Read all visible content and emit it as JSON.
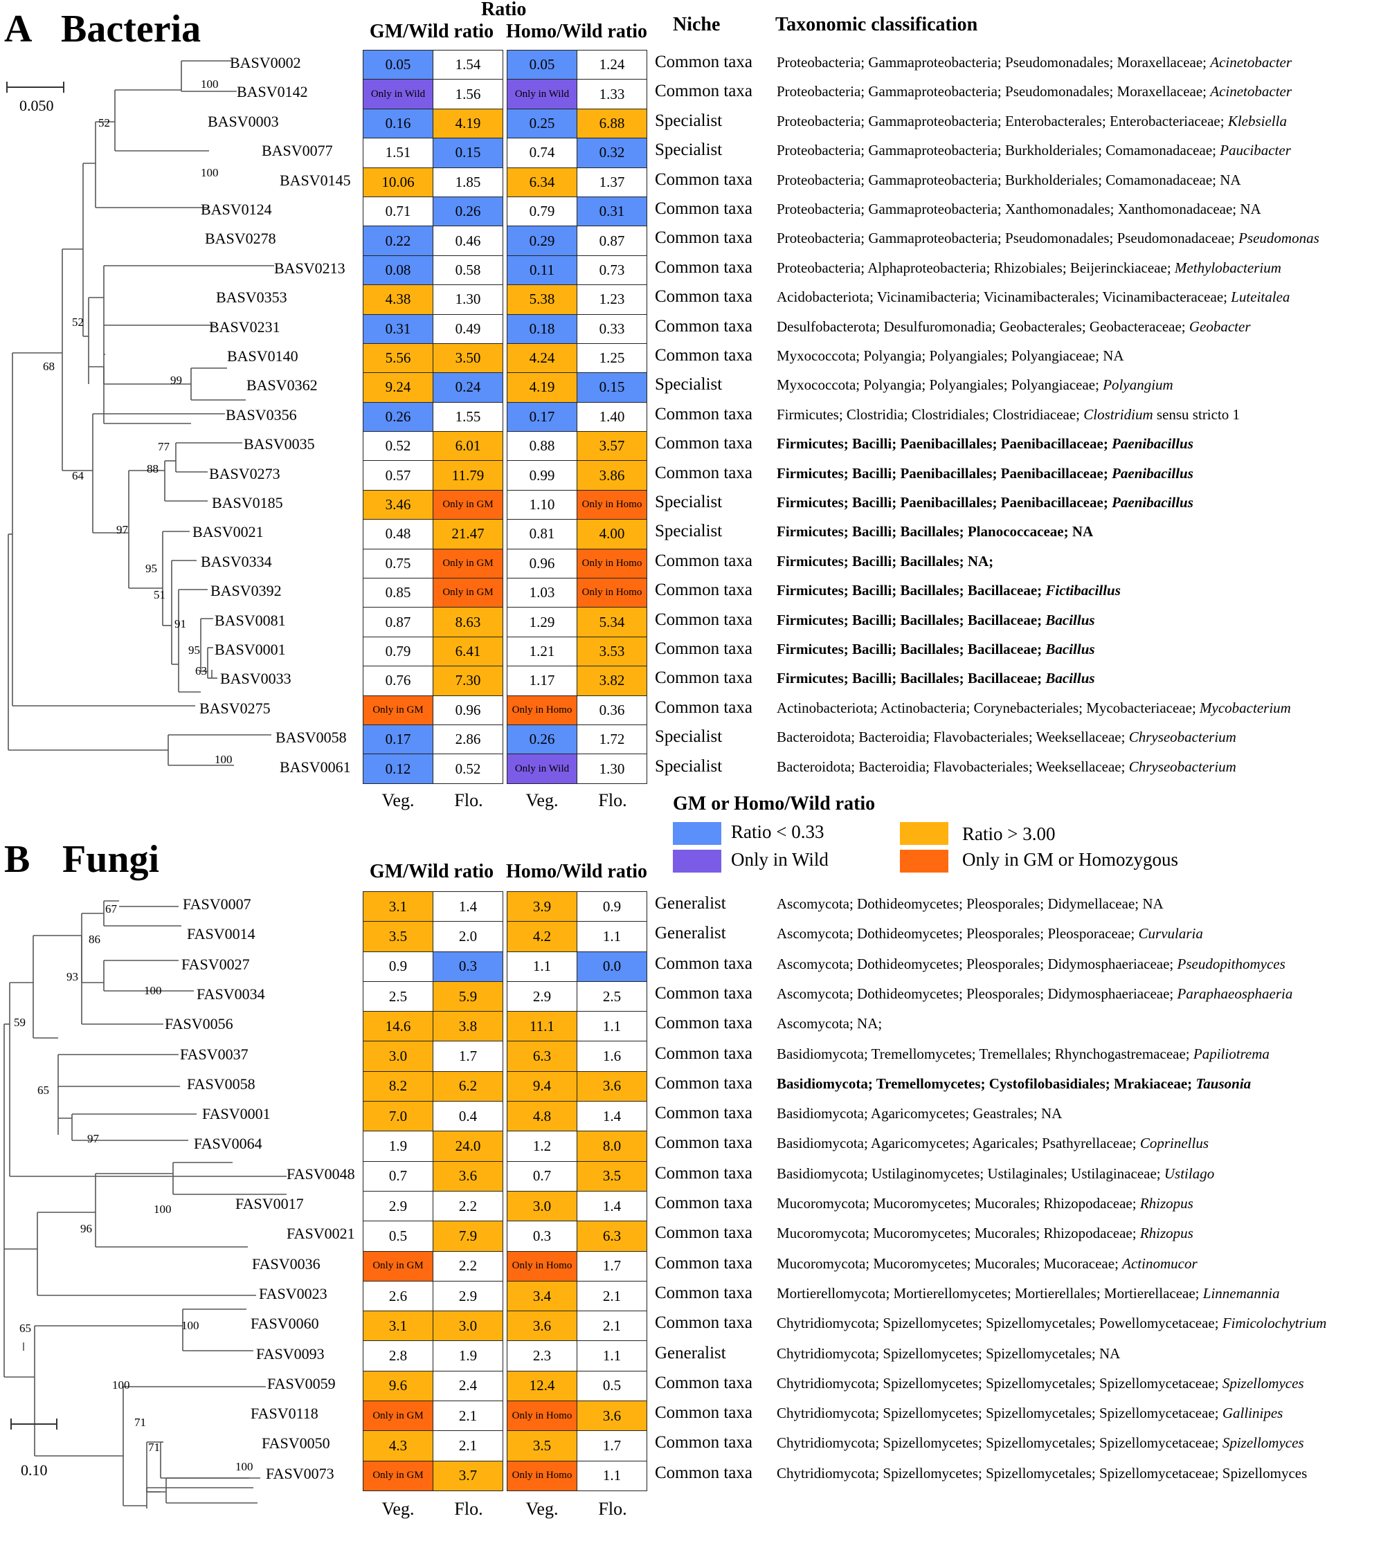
{
  "colors": {
    "low": "#5b8ff9",
    "wild": "#7b5ce6",
    "high": "#ffb20f",
    "only": "#ff6a10",
    "none": "#ffffff"
  },
  "panel_a": {
    "letter": "A",
    "title": "Bacteria",
    "header_ratio": "Ratio",
    "header_gm": "GM/Wild ratio",
    "header_homo": "Homo/Wild ratio",
    "header_niche": "Niche",
    "header_tax": "Taxonomic classification",
    "scale": "0.050",
    "rows": [
      {
        "id": "BASV0002",
        "gv": "0.05",
        "gvc": "low",
        "gf": "1.54",
        "gfc": "none",
        "hv": "0.05",
        "hvc": "low",
        "hf": "1.24",
        "hfc": "none",
        "niche": "Common taxa",
        "tax": "Proteobacteria; Gammaproteobacteria; Pseudomonadales; Moraxellaceae; ",
        "genus": "Acinetobacter",
        "bold": false
      },
      {
        "id": "BASV0142",
        "gv": "Only in Wild",
        "gvc": "wild",
        "gf": "1.56",
        "gfc": "none",
        "hv": "Only in Wild",
        "hvc": "wild",
        "hf": "1.33",
        "hfc": "none",
        "niche": "Common taxa",
        "tax": "Proteobacteria; Gammaproteobacteria; Pseudomonadales; Moraxellaceae; ",
        "genus": "Acinetobacter",
        "bold": false
      },
      {
        "id": "BASV0003",
        "gv": "0.16",
        "gvc": "low",
        "gf": "4.19",
        "gfc": "high",
        "hv": "0.25",
        "hvc": "low",
        "hf": "6.88",
        "hfc": "high",
        "niche": "Specialist",
        "tax": "Proteobacteria; Gammaproteobacteria; Enterobacterales; Enterobacteriaceae; ",
        "genus": "Klebsiella",
        "bold": false
      },
      {
        "id": "BASV0077",
        "gv": "1.51",
        "gvc": "none",
        "gf": "0.15",
        "gfc": "low",
        "hv": "0.74",
        "hvc": "none",
        "hf": "0.32",
        "hfc": "low",
        "niche": "Specialist",
        "tax": "Proteobacteria; Gammaproteobacteria; Burkholderiales; Comamonadaceae; ",
        "genus": "Paucibacter",
        "bold": false
      },
      {
        "id": "BASV0145",
        "gv": "10.06",
        "gvc": "high",
        "gf": "1.85",
        "gfc": "none",
        "hv": "6.34",
        "hvc": "high",
        "hf": "1.37",
        "hfc": "none",
        "niche": "Common taxa",
        "tax": "Proteobacteria; Gammaproteobacteria; Burkholderiales; Comamonadaceae; NA",
        "genus": "",
        "bold": false
      },
      {
        "id": "BASV0124",
        "gv": "0.71",
        "gvc": "none",
        "gf": "0.26",
        "gfc": "low",
        "hv": "0.79",
        "hvc": "none",
        "hf": "0.31",
        "hfc": "low",
        "niche": "Common taxa",
        "tax": "Proteobacteria; Gammaproteobacteria; Xanthomonadales; Xanthomonadaceae; NA",
        "genus": "",
        "bold": false
      },
      {
        "id": "BASV0278",
        "gv": "0.22",
        "gvc": "low",
        "gf": "0.46",
        "gfc": "none",
        "hv": "0.29",
        "hvc": "low",
        "hf": "0.87",
        "hfc": "none",
        "niche": "Common taxa",
        "tax": "Proteobacteria; Gammaproteobacteria; Pseudomonadales; Pseudomonadaceae; ",
        "genus": "Pseudomonas",
        "bold": false
      },
      {
        "id": "BASV0213",
        "gv": "0.08",
        "gvc": "low",
        "gf": "0.58",
        "gfc": "none",
        "hv": "0.11",
        "hvc": "low",
        "hf": "0.73",
        "hfc": "none",
        "niche": "Common taxa",
        "tax": "Proteobacteria; Alphaproteobacteria; Rhizobiales; Beijerinckiaceae; ",
        "genus": "Methylobacterium",
        "bold": false
      },
      {
        "id": "BASV0353",
        "gv": "4.38",
        "gvc": "high",
        "gf": "1.30",
        "gfc": "none",
        "hv": "5.38",
        "hvc": "high",
        "hf": "1.23",
        "hfc": "none",
        "niche": "Common taxa",
        "tax": "Acidobacteriota; Vicinamibacteria; Vicinamibacterales; Vicinamibacteraceae; ",
        "genus": "Luteitalea",
        "bold": false
      },
      {
        "id": "BASV0231",
        "gv": "0.31",
        "gvc": "low",
        "gf": "0.49",
        "gfc": "none",
        "hv": "0.18",
        "hvc": "low",
        "hf": "0.33",
        "hfc": "none",
        "niche": "Common taxa",
        "tax": "Desulfobacterota; Desulfuromonadia; Geobacterales; Geobacteraceae; ",
        "genus": "Geobacter",
        "bold": false
      },
      {
        "id": "BASV0140",
        "gv": "5.56",
        "gvc": "high",
        "gf": "3.50",
        "gfc": "high",
        "hv": "4.24",
        "hvc": "high",
        "hf": "1.25",
        "hfc": "none",
        "niche": "Common taxa",
        "tax": "Myxococcota; Polyangia; Polyangiales; Polyangiaceae; NA",
        "genus": "",
        "bold": false
      },
      {
        "id": "BASV0362",
        "gv": "9.24",
        "gvc": "high",
        "gf": "0.24",
        "gfc": "low",
        "hv": "4.19",
        "hvc": "high",
        "hf": "0.15",
        "hfc": "low",
        "niche": "Specialist",
        "tax": "Myxococcota; Polyangia; Polyangiales; Polyangiaceae; ",
        "genus": "Polyangium",
        "bold": false
      },
      {
        "id": "BASV0356",
        "gv": "0.26",
        "gvc": "low",
        "gf": "1.55",
        "gfc": "none",
        "hv": "0.17",
        "hvc": "low",
        "hf": "1.40",
        "hfc": "none",
        "niche": "Common taxa",
        "tax": "Firmicutes; Clostridia; Clostridiales; Clostridiaceae; ",
        "genus": "Clostridium",
        "suffix": " sensu stricto 1",
        "bold": false
      },
      {
        "id": "BASV0035",
        "gv": "0.52",
        "gvc": "none",
        "gf": "6.01",
        "gfc": "high",
        "hv": "0.88",
        "hvc": "none",
        "hf": "3.57",
        "hfc": "high",
        "niche": "Common taxa",
        "tax": "Firmicutes; Bacilli; Paenibacillales; Paenibacillaceae; ",
        "genus": "Paenibacillus",
        "bold": true
      },
      {
        "id": "BASV0273",
        "gv": "0.57",
        "gvc": "none",
        "gf": "11.79",
        "gfc": "high",
        "hv": "0.99",
        "hvc": "none",
        "hf": "3.86",
        "hfc": "high",
        "niche": "Common taxa",
        "tax": "Firmicutes; Bacilli; Paenibacillales; Paenibacillaceae; ",
        "genus": "Paenibacillus",
        "bold": true
      },
      {
        "id": "BASV0185",
        "gv": "3.46",
        "gvc": "high",
        "gf": "Only in GM",
        "gfc": "only",
        "hv": "1.10",
        "hvc": "none",
        "hf": "Only in Homo",
        "hfc": "only",
        "niche": "Specialist",
        "tax": "Firmicutes; Bacilli; Paenibacillales; Paenibacillaceae; ",
        "genus": "Paenibacillus",
        "bold": true
      },
      {
        "id": "BASV0021",
        "gv": "0.48",
        "gvc": "none",
        "gf": "21.47",
        "gfc": "high",
        "hv": "0.81",
        "hvc": "none",
        "hf": "4.00",
        "hfc": "high",
        "niche": "Specialist",
        "tax": "Firmicutes; Bacilli; Bacillales; Planococcaceae; NA",
        "genus": "",
        "bold": true
      },
      {
        "id": "BASV0334",
        "gv": "0.75",
        "gvc": "none",
        "gf": "Only in GM",
        "gfc": "only",
        "hv": "0.96",
        "hvc": "none",
        "hf": "Only in Homo",
        "hfc": "only",
        "niche": "Common taxa",
        "tax": "Firmicutes; Bacilli; Bacillales; NA;",
        "genus": "",
        "bold": true
      },
      {
        "id": "BASV0392",
        "gv": "0.85",
        "gvc": "none",
        "gf": "Only in GM",
        "gfc": "only",
        "hv": "1.03",
        "hvc": "none",
        "hf": "Only in Homo",
        "hfc": "only",
        "niche": "Common taxa",
        "tax": "Firmicutes; Bacilli; Bacillales; Bacillaceae; ",
        "genus": "Fictibacillus",
        "bold": true
      },
      {
        "id": "BASV0081",
        "gv": "0.87",
        "gvc": "none",
        "gf": "8.63",
        "gfc": "high",
        "hv": "1.29",
        "hvc": "none",
        "hf": "5.34",
        "hfc": "high",
        "niche": "Common taxa",
        "tax": "Firmicutes; Bacilli; Bacillales; Bacillaceae; ",
        "genus": "Bacillus",
        "bold": true
      },
      {
        "id": "BASV0001",
        "gv": "0.79",
        "gvc": "none",
        "gf": "6.41",
        "gfc": "high",
        "hv": "1.21",
        "hvc": "none",
        "hf": "3.53",
        "hfc": "high",
        "niche": "Common taxa",
        "tax": "Firmicutes; Bacilli; Bacillales; Bacillaceae; ",
        "genus": "Bacillus",
        "bold": true
      },
      {
        "id": "BASV0033",
        "gv": "0.76",
        "gvc": "none",
        "gf": "7.30",
        "gfc": "high",
        "hv": "1.17",
        "hvc": "none",
        "hf": "3.82",
        "hfc": "high",
        "niche": "Common taxa",
        "tax": "Firmicutes; Bacilli; Bacillales; Bacillaceae; ",
        "genus": "Bacillus",
        "bold": true
      },
      {
        "id": "BASV0275",
        "gv": "Only in GM",
        "gvc": "only",
        "gf": "0.96",
        "gfc": "none",
        "hv": "Only in Homo",
        "hvc": "only",
        "hf": "0.36",
        "hfc": "none",
        "niche": "Common taxa",
        "tax": "Actinobacteriota; Actinobacteria; Corynebacteriales; Mycobacteriaceae; ",
        "genus": "Mycobacterium",
        "bold": false
      },
      {
        "id": "BASV0058",
        "gv": "0.17",
        "gvc": "low",
        "gf": "2.86",
        "gfc": "none",
        "hv": "0.26",
        "hvc": "low",
        "hf": "1.72",
        "hfc": "none",
        "niche": "Specialist",
        "tax": "Bacteroidota; Bacteroidia; Flavobacteriales; Weeksellaceae; ",
        "genus": "Chryseobacterium",
        "bold": false
      },
      {
        "id": "BASV0061",
        "gv": "0.12",
        "gvc": "low",
        "gf": "0.52",
        "gfc": "none",
        "hv": "Only in Wild",
        "hvc": "wild",
        "hf": "1.30",
        "hfc": "none",
        "niche": "Specialist",
        "tax": "Bacteroidota; Bacteroidia; Flavobacteriales; Weeksellaceae; ",
        "genus": "Chryseobacterium",
        "bold": false
      }
    ],
    "bootstraps": [
      "100",
      "52",
      "100",
      "52",
      "99",
      "68",
      "77",
      "88",
      "64",
      "97",
      "95",
      "51",
      "91",
      "95",
      "63",
      "100"
    ],
    "col_labels": [
      "Veg.",
      "Flo.",
      "Veg.",
      "Flo."
    ]
  },
  "legend": {
    "title": "GM or Homo/Wild ratio",
    "low": "Ratio < 0.33",
    "high": "Ratio > 3.00",
    "wild": "Only in Wild",
    "only": "Only in GM or Homozygous"
  },
  "panel_b": {
    "letter": "B",
    "title": "Fungi",
    "header_gm": "GM/Wild ratio",
    "header_homo": "Homo/Wild ratio",
    "scale": "0.10",
    "rows": [
      {
        "id": "FASV0007",
        "gv": "3.1",
        "gvc": "high",
        "gf": "1.4",
        "gfc": "none",
        "hv": "3.9",
        "hvc": "high",
        "hf": "0.9",
        "hfc": "none",
        "niche": "Generalist",
        "tax": "Ascomycota; Dothideomycetes; Pleosporales; Didymellaceae; NA",
        "genus": "",
        "bold": false
      },
      {
        "id": "FASV0014",
        "gv": "3.5",
        "gvc": "high",
        "gf": "2.0",
        "gfc": "none",
        "hv": "4.2",
        "hvc": "high",
        "hf": "1.1",
        "hfc": "none",
        "niche": "Generalist",
        "tax": "Ascomycota; Dothideomycetes; Pleosporales; Pleosporaceae; ",
        "genus": "Curvularia",
        "bold": false
      },
      {
        "id": "FASV0027",
        "gv": "0.9",
        "gvc": "none",
        "gf": "0.3",
        "gfc": "low",
        "hv": "1.1",
        "hvc": "none",
        "hf": "0.0",
        "hfc": "low",
        "niche": "Common taxa",
        "tax": "Ascomycota; Dothideomycetes; Pleosporales; Didymosphaeriaceae; ",
        "genus": "Pseudopithomyces",
        "bold": false
      },
      {
        "id": "FASV0034",
        "gv": "2.5",
        "gvc": "none",
        "gf": "5.9",
        "gfc": "high",
        "hv": "2.9",
        "hvc": "none",
        "hf": "2.5",
        "hfc": "none",
        "niche": "Common taxa",
        "tax": "Ascomycota; Dothideomycetes; Pleosporales; Didymosphaeriaceae; ",
        "genus": "Paraphaeosphaeria",
        "bold": false
      },
      {
        "id": "FASV0056",
        "gv": "14.6",
        "gvc": "high",
        "gf": "3.8",
        "gfc": "high",
        "hv": "11.1",
        "hvc": "high",
        "hf": "1.1",
        "hfc": "none",
        "niche": "Common taxa",
        "tax": "Ascomycota; NA;",
        "genus": "",
        "bold": false
      },
      {
        "id": "FASV0037",
        "gv": "3.0",
        "gvc": "high",
        "gf": "1.7",
        "gfc": "none",
        "hv": "6.3",
        "hvc": "high",
        "hf": "1.6",
        "hfc": "none",
        "niche": "Common taxa",
        "tax": "Basidiomycota; Tremellomycetes; Tremellales; Rhynchogastremaceae; ",
        "genus": "Papiliotrema",
        "bold": false
      },
      {
        "id": "FASV0058",
        "gv": "8.2",
        "gvc": "high",
        "gf": "6.2",
        "gfc": "high",
        "hv": "9.4",
        "hvc": "high",
        "hf": "3.6",
        "hfc": "high",
        "niche": "Common taxa",
        "tax": "Basidiomycota; Tremellomycetes; Cystofilobasidiales; Mrakiaceae; ",
        "genus": "Tausonia",
        "bold": true
      },
      {
        "id": "FASV0001",
        "gv": "7.0",
        "gvc": "high",
        "gf": "0.4",
        "gfc": "none",
        "hv": "4.8",
        "hvc": "high",
        "hf": "1.4",
        "hfc": "none",
        "niche": "Common taxa",
        "tax": "Basidiomycota; Agaricomycetes; Geastrales; NA",
        "genus": "",
        "bold": false
      },
      {
        "id": "FASV0064",
        "gv": "1.9",
        "gvc": "none",
        "gf": "24.0",
        "gfc": "high",
        "hv": "1.2",
        "hvc": "none",
        "hf": "8.0",
        "hfc": "high",
        "niche": "Common taxa",
        "tax": "Basidiomycota; Agaricomycetes; Agaricales; Psathyrellaceae; ",
        "genus": "Coprinellus",
        "bold": false
      },
      {
        "id": "FASV0048",
        "gv": "0.7",
        "gvc": "none",
        "gf": "3.6",
        "gfc": "high",
        "hv": "0.7",
        "hvc": "none",
        "hf": "3.5",
        "hfc": "high",
        "niche": "Common taxa",
        "tax": "Basidiomycota; Ustilaginomycetes; Ustilaginales; Ustilaginaceae; ",
        "genus": "Ustilago",
        "bold": false
      },
      {
        "id": "FASV0017",
        "gv": "2.9",
        "gvc": "none",
        "gf": "2.2",
        "gfc": "none",
        "hv": "3.0",
        "hvc": "high",
        "hf": "1.4",
        "hfc": "none",
        "niche": "Common taxa",
        "tax": "Mucoromycota; Mucoromycetes; Mucorales; Rhizopodaceae; ",
        "genus": "Rhizopus",
        "bold": false
      },
      {
        "id": "FASV0021",
        "gv": "0.5",
        "gvc": "none",
        "gf": "7.9",
        "gfc": "high",
        "hv": "0.3",
        "hvc": "none",
        "hf": "6.3",
        "hfc": "high",
        "niche": "Common taxa",
        "tax": "Mucoromycota; Mucoromycetes; Mucorales; Rhizopodaceae; ",
        "genus": "Rhizopus",
        "bold": false
      },
      {
        "id": "FASV0036",
        "gv": "Only in GM",
        "gvc": "only",
        "gf": "2.2",
        "gfc": "none",
        "hv": "Only in Homo",
        "hvc": "only",
        "hf": "1.7",
        "hfc": "none",
        "niche": "Common taxa",
        "tax": "Mucoromycota; Mucoromycetes; Mucorales; Mucoraceae; ",
        "genus": "Actinomucor",
        "bold": false
      },
      {
        "id": "FASV0023",
        "gv": "2.6",
        "gvc": "none",
        "gf": "2.9",
        "gfc": "none",
        "hv": "3.4",
        "hvc": "high",
        "hf": "2.1",
        "hfc": "none",
        "niche": "Common taxa",
        "tax": "Mortierellomycota; Mortierellomycetes; Mortierellales; Mortierellaceae; ",
        "genus": "Linnemannia",
        "bold": false
      },
      {
        "id": "FASV0060",
        "gv": "3.1",
        "gvc": "high",
        "gf": "3.0",
        "gfc": "high",
        "hv": "3.6",
        "hvc": "high",
        "hf": "2.1",
        "hfc": "none",
        "niche": "Common taxa",
        "tax": "Chytridiomycota; Spizellomycetes; Spizellomycetales; Powellomycetaceae; ",
        "genus": "Fimicolochytrium",
        "bold": false
      },
      {
        "id": "FASV0093",
        "gv": "2.8",
        "gvc": "none",
        "gf": "1.9",
        "gfc": "none",
        "hv": "2.3",
        "hvc": "none",
        "hf": "1.1",
        "hfc": "none",
        "niche": "Generalist",
        "tax": "Chytridiomycota; Spizellomycetes; Spizellomycetales; NA",
        "genus": "",
        "bold": false
      },
      {
        "id": "FASV0059",
        "gv": "9.6",
        "gvc": "high",
        "gf": "2.4",
        "gfc": "none",
        "hv": "12.4",
        "hvc": "high",
        "hf": "0.5",
        "hfc": "none",
        "niche": "Common taxa",
        "tax": "Chytridiomycota; Spizellomycetes; Spizellomycetales; Spizellomycetaceae; ",
        "genus": "Spizellomyces",
        "bold": false
      },
      {
        "id": "FASV0118",
        "gv": "Only in GM",
        "gvc": "only",
        "gf": "2.1",
        "gfc": "none",
        "hv": "Only in Homo",
        "hvc": "only",
        "hf": "3.6",
        "hfc": "high",
        "niche": "Common taxa",
        "tax": "Chytridiomycota; Spizellomycetes; Spizellomycetales; Spizellomycetaceae; ",
        "genus": "Gallinipes",
        "bold": false
      },
      {
        "id": "FASV0050",
        "gv": "4.3",
        "gvc": "high",
        "gf": "2.1",
        "gfc": "none",
        "hv": "3.5",
        "hvc": "high",
        "hf": "1.7",
        "hfc": "none",
        "niche": "Common taxa",
        "tax": "Chytridiomycota; Spizellomycetes; Spizellomycetales; Spizellomycetaceae; ",
        "genus": "Spizellomyces",
        "bold": false
      },
      {
        "id": "FASV0073",
        "gv": "Only in GM",
        "gvc": "only",
        "gf": "3.7",
        "gfc": "high",
        "hv": "Only in Homo",
        "hvc": "only",
        "hf": "1.1",
        "hfc": "none",
        "niche": "Common taxa",
        "tax": "Chytridiomycota; Spizellomycetes; Spizellomycetales; Spizellomycetaceae; Spizellomyces",
        "genus": "",
        "bold": false
      }
    ],
    "bootstraps": [
      "67",
      "86",
      "93",
      "100",
      "59",
      "65",
      "97",
      "100",
      "96",
      "65",
      "100",
      "100",
      "71",
      "71",
      "100"
    ],
    "col_labels": [
      "Veg.",
      "Flo.",
      "Veg.",
      "Flo."
    ]
  }
}
